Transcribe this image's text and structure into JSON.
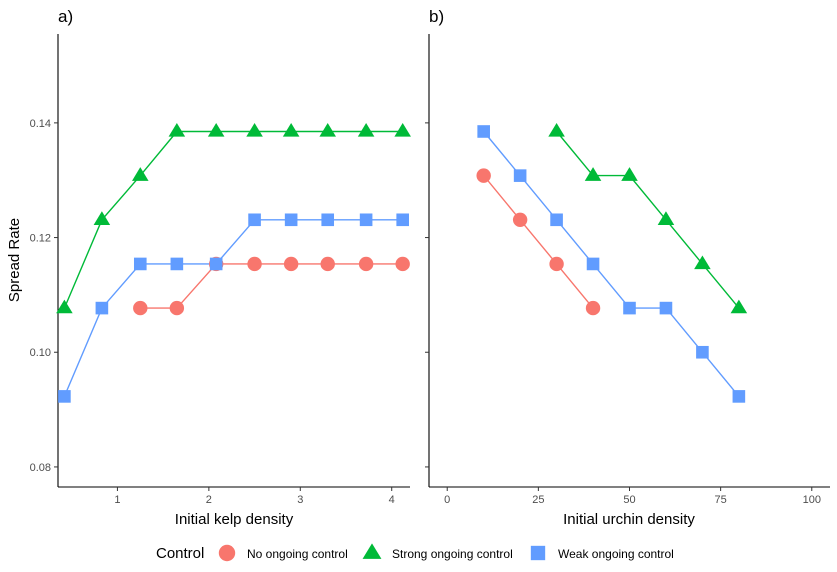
{
  "colors": {
    "none": "#F8766D",
    "strong": "#00BA38",
    "weak": "#619CFF"
  },
  "legend": {
    "title": "Control",
    "items": [
      {
        "key": "none",
        "label": "No ongoing control",
        "marker": "circle"
      },
      {
        "key": "strong",
        "label": "Strong ongoing control",
        "marker": "triangle"
      },
      {
        "key": "weak",
        "label": "Weak ongoing control",
        "marker": "square"
      }
    ]
  },
  "chart_data": [
    {
      "type": "line",
      "panel_label": "a)",
      "xlabel": "Initial kelp density",
      "ylabel": "Spread Rate",
      "xlim": [
        0.35,
        4.2
      ],
      "ylim": [
        0.0765,
        0.1555
      ],
      "xticks": [
        1,
        2,
        3,
        4
      ],
      "yticks": [
        0.08,
        0.1,
        0.12,
        0.14
      ],
      "ytick_labels": [
        "0.08",
        "0.10",
        "0.12",
        "0.14"
      ],
      "series": [
        {
          "key": "none",
          "name": "No ongoing control",
          "marker": "circle",
          "x": [
            1.25,
            1.65,
            2.08,
            2.5,
            2.9,
            3.3,
            3.72,
            4.12
          ],
          "y": [
            0.1077,
            0.1077,
            0.1154,
            0.1154,
            0.1154,
            0.1154,
            0.1154,
            0.1154
          ]
        },
        {
          "key": "strong",
          "name": "Strong ongoing control",
          "marker": "triangle",
          "x": [
            0.42,
            0.83,
            1.25,
            1.65,
            2.08,
            2.5,
            2.9,
            3.3,
            3.72,
            4.12
          ],
          "y": [
            0.1077,
            0.1231,
            0.1308,
            0.1385,
            0.1385,
            0.1385,
            0.1385,
            0.1385,
            0.1385,
            0.1385
          ]
        },
        {
          "key": "weak",
          "name": "Weak ongoing control",
          "marker": "square",
          "x": [
            0.42,
            0.83,
            1.25,
            1.65,
            2.08,
            2.5,
            2.9,
            3.3,
            3.72,
            4.12
          ],
          "y": [
            0.0923,
            0.1077,
            0.1154,
            0.1154,
            0.1154,
            0.1231,
            0.1231,
            0.1231,
            0.1231,
            0.1231
          ]
        }
      ]
    },
    {
      "type": "line",
      "panel_label": "b)",
      "xlabel": "Initial urchin density",
      "ylabel": "",
      "xlim": [
        -5,
        105
      ],
      "ylim": [
        0.0765,
        0.1555
      ],
      "xticks": [
        0,
        25,
        50,
        75,
        100
      ],
      "yticks": [
        0.08,
        0.1,
        0.12,
        0.14
      ],
      "ytick_labels": [
        "",
        "",
        "",
        ""
      ],
      "series": [
        {
          "key": "none",
          "name": "No ongoing control",
          "marker": "circle",
          "x": [
            10,
            20,
            30,
            40
          ],
          "y": [
            0.1308,
            0.1231,
            0.1154,
            0.1077
          ]
        },
        {
          "key": "strong",
          "name": "Strong ongoing control",
          "marker": "triangle",
          "x": [
            30,
            40,
            50,
            60,
            70,
            80
          ],
          "y": [
            0.1385,
            0.1308,
            0.1308,
            0.1231,
            0.1154,
            0.1077
          ]
        },
        {
          "key": "weak",
          "name": "Weak ongoing control",
          "marker": "square",
          "x": [
            10,
            20,
            30,
            40,
            50,
            60,
            70,
            80
          ],
          "y": [
            0.1385,
            0.1308,
            0.1231,
            0.1154,
            0.1077,
            0.1077,
            0.1,
            0.0923
          ]
        }
      ]
    }
  ]
}
